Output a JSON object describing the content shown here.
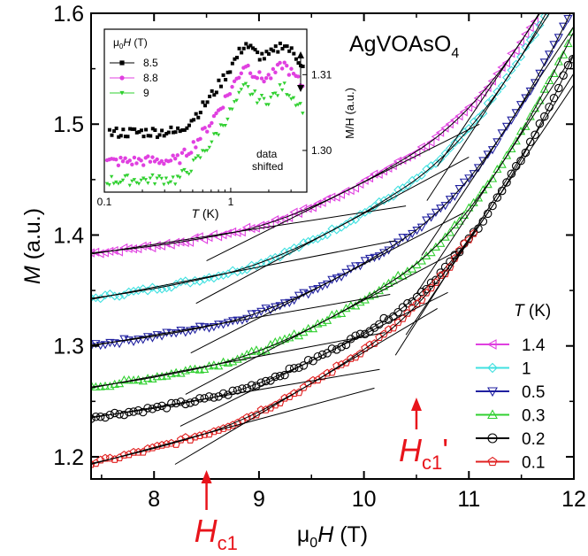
{
  "chart_data": [
    {
      "type": "scatter",
      "sample_label": "AgVOAsO",
      "sample_subscript": "4",
      "xlabel_prefix": "μ",
      "xlabel_sub": "0",
      "xlabel_symbol": "H",
      "xlabel_unit": " (T)",
      "ylabel_symbol": "M",
      "ylabel_unit": " (a.u.)",
      "xlim": [
        7.4,
        12
      ],
      "ylim": [
        1.18,
        1.6
      ],
      "x_ticks": [
        "8",
        "9",
        "10",
        "11",
        "12"
      ],
      "y_ticks": [
        "1.2",
        "1.3",
        "1.4",
        "1.5",
        "1.6"
      ],
      "legend_title_symbol": "T",
      "legend_title_unit": " (K)",
      "series": [
        {
          "name": "1.4",
          "color": "#e040e0",
          "marker": "triangle-left",
          "hc1": 8.8,
          "m0": 1.384,
          "s1": 0.023,
          "hc1p": 10.9,
          "s2": 0.22
        },
        {
          "name": "1",
          "color": "#40e0e0",
          "marker": "diamond",
          "hc1": 8.7,
          "m0": 1.343,
          "s1": 0.035,
          "hc1p": 10.8,
          "s2": 0.22
        },
        {
          "name": "0.5",
          "color": "#2020a0",
          "marker": "triangle-down",
          "hc1": 8.65,
          "m0": 1.301,
          "s1": 0.03,
          "hc1p": 10.75,
          "s2": 0.205
        },
        {
          "name": "0.3",
          "color": "#30d030",
          "marker": "triangle-up",
          "hc1": 8.6,
          "m0": 1.263,
          "s1": 0.035,
          "hc1p": 10.7,
          "s2": 0.2
        },
        {
          "name": "0.2",
          "color": "#000000",
          "marker": "circle",
          "hc1": 8.55,
          "m0": 1.236,
          "s1": 0.03,
          "hc1p": 10.6,
          "s2": 0.19
        },
        {
          "name": "0.1",
          "color": "#e02020",
          "marker": "pentagon",
          "hc1": 8.5,
          "m0": 1.194,
          "s1": 0.058,
          "hc1p": 10.5,
          "s2": 0.168
        }
      ],
      "annotations": {
        "hc1": {
          "symbol": "H",
          "sub": "c1",
          "prime": "",
          "x": 8.5
        },
        "hc1p": {
          "symbol": "H",
          "sub": "c1",
          "prime": "'",
          "x": 10.5
        }
      }
    },
    {
      "type": "scatter",
      "inset": true,
      "xlabel_symbol": "T",
      "xlabel_unit": " (K)",
      "x_scale": "log",
      "xlim": [
        0.1,
        4
      ],
      "x_ticks": [
        "0.1",
        "1"
      ],
      "ylabel": "M/H (a.u.)",
      "ylim": [
        1.2945,
        1.316
      ],
      "y_ticks": [
        "1.30",
        "1.31"
      ],
      "legend_title_prefix": "μ",
      "legend_title_sub": "0",
      "legend_title_symbol": "H",
      "legend_title_unit": " (T)",
      "series": [
        {
          "name": "8.5",
          "color": "#000000",
          "marker": "square",
          "base": 1.3023,
          "peak": 1.3142
        },
        {
          "name": "8.8",
          "color": "#e040e0",
          "marker": "circle",
          "base": 1.2985,
          "peak": 1.3115
        },
        {
          "name": "9",
          "color": "#30d030",
          "marker": "triangle-down",
          "base": 1.296,
          "peak": 1.3085
        }
      ],
      "note_lines": [
        "data",
        "shifted"
      ]
    }
  ]
}
